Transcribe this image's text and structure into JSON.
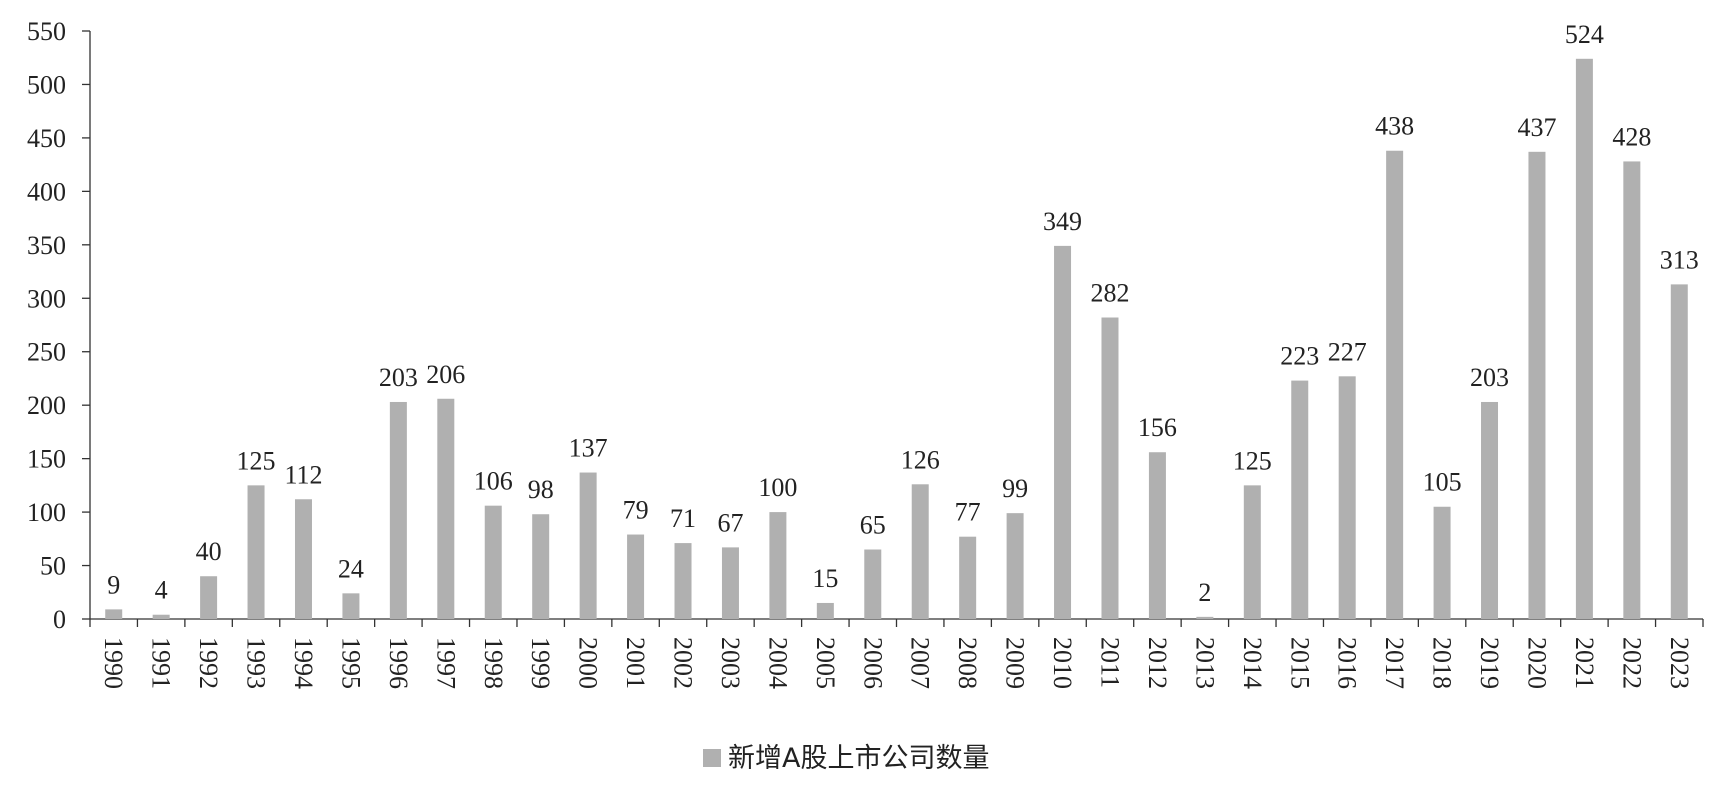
{
  "chart_data": {
    "type": "bar",
    "categories": [
      "1990",
      "1991",
      "1992",
      "1993",
      "1994",
      "1995",
      "1996",
      "1997",
      "1998",
      "1999",
      "2000",
      "2001",
      "2002",
      "2003",
      "2004",
      "2005",
      "2006",
      "2007",
      "2008",
      "2009",
      "2010",
      "2011",
      "2012",
      "2013",
      "2014",
      "2015",
      "2016",
      "2017",
      "2018",
      "2019",
      "2020",
      "2021",
      "2022",
      "2023"
    ],
    "series": [
      {
        "name": "新增A股上市公司数量",
        "values": [
          9,
          4,
          40,
          125,
          112,
          24,
          203,
          206,
          106,
          98,
          137,
          79,
          71,
          67,
          100,
          15,
          65,
          126,
          77,
          99,
          349,
          282,
          156,
          2,
          125,
          223,
          227,
          438,
          105,
          203,
          437,
          524,
          428,
          313
        ]
      }
    ],
    "data_labels": [
      "9",
      "4",
      "40",
      "125",
      "112",
      "24",
      "203",
      "206",
      "106",
      "98",
      "137",
      "79",
      "71",
      "67",
      "100",
      "15",
      "65",
      "126",
      "77",
      "99",
      "349",
      "282",
      "156",
      "2",
      "125",
      "223",
      "227",
      "438",
      "105",
      "203",
      "437",
      "524",
      "428",
      "313"
    ],
    "y_ticks": [
      "0",
      "50",
      "100",
      "150",
      "200",
      "250",
      "300",
      "350",
      "400",
      "450",
      "500",
      "550"
    ],
    "ylim": [
      0,
      550
    ],
    "title": "",
    "xlabel": "",
    "ylabel": "",
    "grid": false,
    "legend_position": "bottom-center",
    "bar_color": "#b0b0b0",
    "axis_color": "#333333"
  }
}
